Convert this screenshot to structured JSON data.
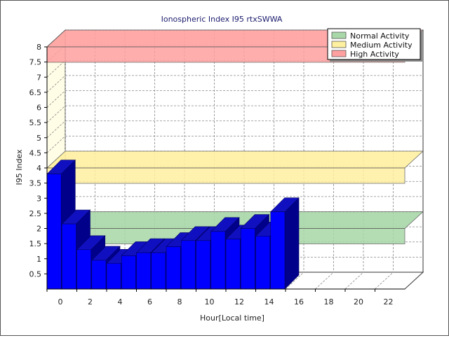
{
  "chart_data": {
    "type": "bar",
    "title": "Ionospheric Index I95 rtxSWWA",
    "xlabel": "Hour[Local time]",
    "ylabel": "I95 Index",
    "xlim": [
      0,
      24
    ],
    "ylim": [
      0,
      8
    ],
    "x_ticks": [
      "0",
      "2",
      "4",
      "6",
      "8",
      "10",
      "12",
      "14",
      "16",
      "18",
      "20",
      "22"
    ],
    "y_ticks": [
      "0.5",
      "1",
      "1.5",
      "2",
      "2.5",
      "3",
      "3.5",
      "4",
      "4.5",
      "5",
      "5.5",
      "6",
      "6.5",
      "7",
      "7.5",
      "8"
    ],
    "grid": true,
    "legend_position": "top-right",
    "x": [
      0,
      1,
      2,
      3,
      4,
      5,
      6,
      7,
      8,
      9,
      10,
      11,
      12,
      13,
      14,
      15
    ],
    "values": [
      3.8,
      2.15,
      1.3,
      0.95,
      0.85,
      1.1,
      1.2,
      1.2,
      1.4,
      1.6,
      1.6,
      1.9,
      1.65,
      2.0,
      1.75,
      2.55
    ],
    "bar_color": "#0000ff",
    "bands": [
      {
        "name": "Normal Activity",
        "value": 2.0,
        "color": "#a8d8a8"
      },
      {
        "name": "Medium Activity",
        "value": 4.0,
        "color": "#fff0a0"
      },
      {
        "name": "High Activity",
        "value": 8.0,
        "color": "#ffa0a0"
      }
    ]
  }
}
